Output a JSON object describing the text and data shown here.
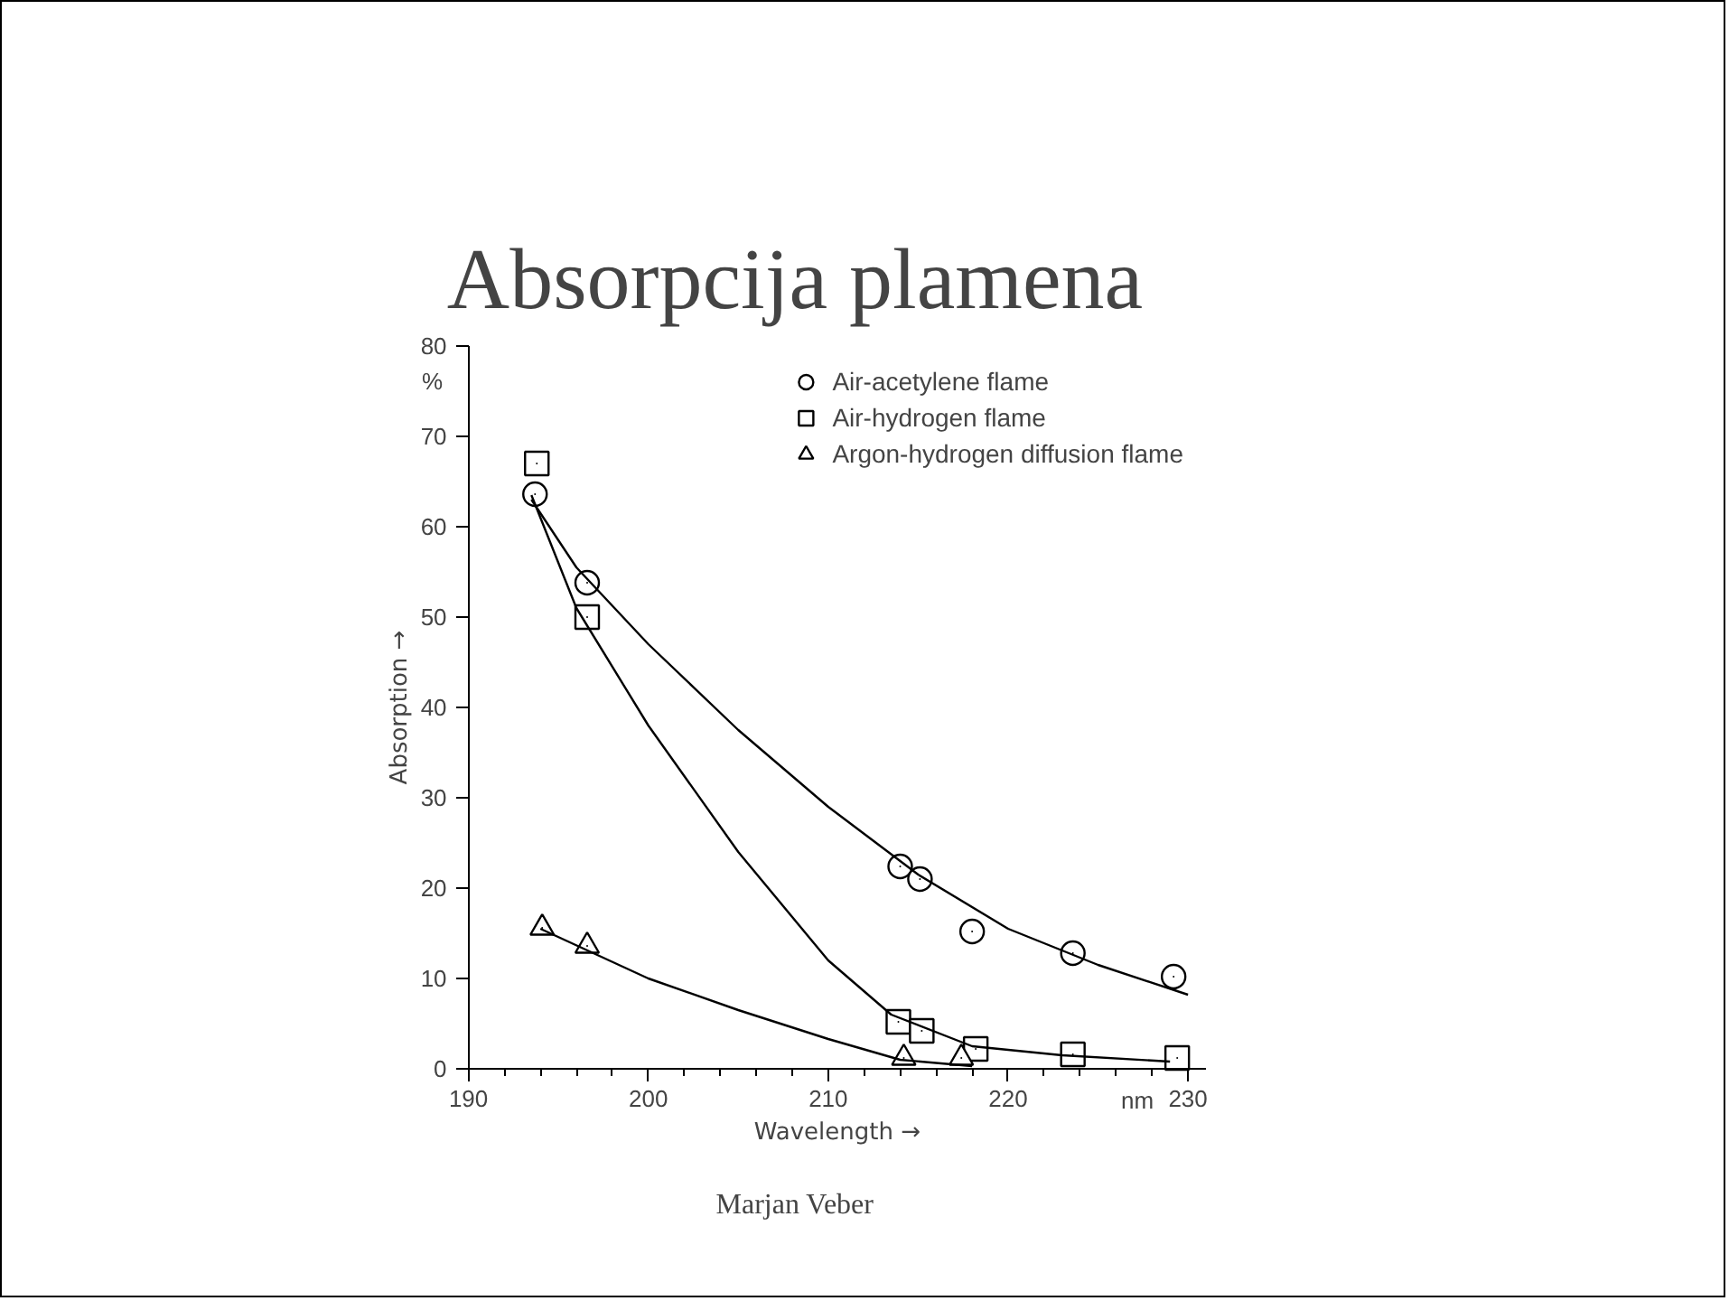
{
  "chart_data": {
    "type": "scatter",
    "title": "Absorpcija plamena",
    "xlabel": "Wavelength →",
    "ylabel": "Absorption →",
    "annotations": [
      "%",
      "nm",
      "Marjan Veber"
    ],
    "xlim": [
      190,
      231
    ],
    "ylim": [
      0,
      80
    ],
    "xticks": [
      190,
      200,
      210,
      220,
      230
    ],
    "yticks": [
      0,
      10,
      20,
      30,
      40,
      50,
      60,
      70,
      80
    ],
    "grid": false,
    "legend": "top right",
    "series": [
      {
        "name": "Air-acetylene flame",
        "color": "#000000",
        "marker": "circle",
        "x": [
          193.7,
          196.6,
          214.0,
          215.1,
          218.0,
          223.6,
          229.2
        ],
        "values": [
          63.6,
          53.8,
          22.4,
          21.0,
          15.2,
          12.8,
          10.2
        ]
      },
      {
        "name": "Air-hydrogen flame",
        "color": "#000000",
        "marker": "square",
        "x": [
          193.8,
          196.6,
          213.9,
          215.2,
          218.2,
          223.6,
          229.4
        ],
        "values": [
          67.0,
          50.0,
          5.2,
          4.2,
          2.2,
          1.6,
          1.2
        ]
      },
      {
        "name": "Argon-hydrogen diffusion flame",
        "color": "#000000",
        "marker": "triangle",
        "x": [
          194.1,
          196.6,
          214.2,
          217.4
        ],
        "values": [
          15.6,
          13.6,
          1.2,
          1.2
        ]
      },
      {
        "type": "line",
        "color": "#000000",
        "marker": "none",
        "line_style": "solid",
        "x": [
          193.5,
          196,
          200,
          205,
          210,
          215,
          220,
          225,
          230
        ],
        "values": [
          63.0,
          55.5,
          47.0,
          37.5,
          29.0,
          21.5,
          15.5,
          11.5,
          8.2
        ]
      },
      {
        "type": "line",
        "color": "#000000",
        "marker": "none",
        "line_style": "solid",
        "x": [
          193.5,
          196,
          200,
          205,
          210,
          213.5,
          218,
          223,
          229
        ],
        "values": [
          63.5,
          51.0,
          38.0,
          24.0,
          12.0,
          6.0,
          2.5,
          1.5,
          0.8
        ]
      },
      {
        "type": "line",
        "color": "#000000",
        "marker": "none",
        "line_style": "solid",
        "x": [
          194,
          200,
          205,
          210,
          214,
          218
        ],
        "values": [
          15.5,
          10.0,
          6.5,
          3.3,
          1.0,
          0.3
        ]
      }
    ]
  }
}
